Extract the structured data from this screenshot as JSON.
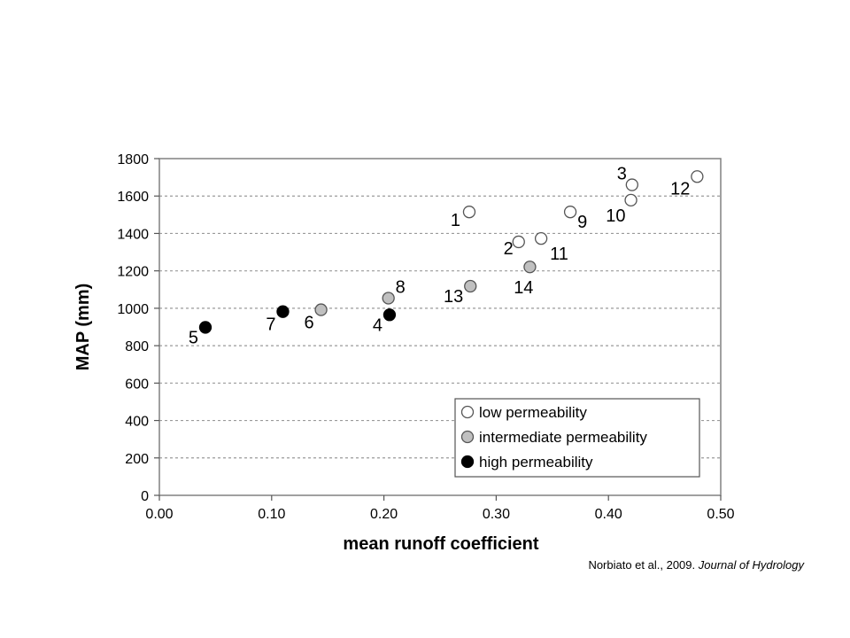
{
  "chart_data": {
    "type": "scatter",
    "title": "",
    "xlabel": "mean runoff coefficient",
    "ylabel": "MAP (mm)",
    "xlim": [
      0,
      0.5
    ],
    "ylim": [
      0,
      1800
    ],
    "x_ticks": [
      "0.00",
      "0.10",
      "0.20",
      "0.30",
      "0.40",
      "0.50"
    ],
    "y_ticks": [
      "0",
      "200",
      "400",
      "600",
      "800",
      "1000",
      "1200",
      "1400",
      "1600",
      "1800"
    ],
    "grid": "horizontal dotted",
    "legend_position": "bottom-right",
    "series": [
      {
        "name": "low permeability",
        "marker_fill": "#ffffff",
        "points": [
          {
            "label": "1",
            "x": 0.276,
            "y": 1515
          },
          {
            "label": "2",
            "x": 0.32,
            "y": 1355
          },
          {
            "label": "3",
            "x": 0.421,
            "y": 1660
          },
          {
            "label": "9",
            "x": 0.366,
            "y": 1515
          },
          {
            "label": "10",
            "x": 0.42,
            "y": 1578
          },
          {
            "label": "11",
            "x": 0.34,
            "y": 1373
          },
          {
            "label": "12",
            "x": 0.479,
            "y": 1704
          }
        ]
      },
      {
        "name": "intermediate permeability",
        "marker_fill": "#c0c0c0",
        "points": [
          {
            "label": "6",
            "x": 0.144,
            "y": 992
          },
          {
            "label": "8",
            "x": 0.204,
            "y": 1054
          },
          {
            "label": "13",
            "x": 0.277,
            "y": 1118
          },
          {
            "label": "14",
            "x": 0.33,
            "y": 1221
          }
        ]
      },
      {
        "name": "high permeability",
        "marker_fill": "#000000",
        "points": [
          {
            "label": "5",
            "x": 0.041,
            "y": 898
          },
          {
            "label": "7",
            "x": 0.11,
            "y": 982
          },
          {
            "label": "4",
            "x": 0.205,
            "y": 965
          }
        ]
      }
    ]
  },
  "source": {
    "authors": "Norbiato et al., 2009.",
    "journal": "Journal of Hydrology"
  }
}
